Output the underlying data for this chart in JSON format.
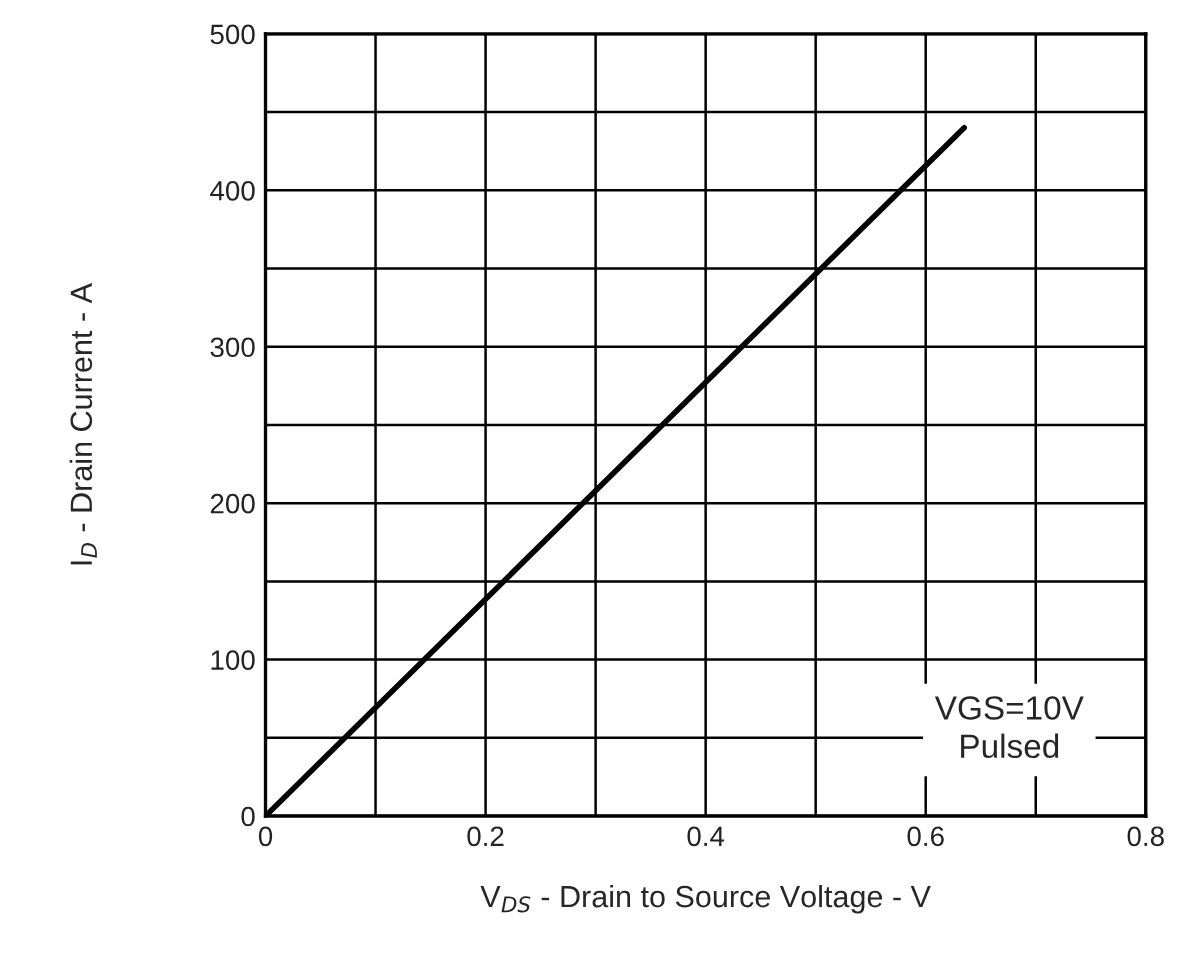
{
  "chart_data": {
    "type": "line",
    "xlabel": "V$_{DS}$ - Drain to Source Voltage - V",
    "ylabel": "I$_{D}$ - Drain Current - A",
    "x": [
      0,
      0.3,
      0.635
    ],
    "series": [
      {
        "color": "#000000",
        "values": [
          0,
          208,
          440
        ]
      }
    ],
    "xlim": [
      0,
      0.8
    ],
    "ylim": [
      0,
      500
    ],
    "xticks": [
      0,
      {
        "value": 0.1,
        "label": null
      },
      0.2,
      {
        "value": 0.3,
        "label": null
      },
      0.4,
      {
        "value": 0.5,
        "label": null
      },
      0.6,
      {
        "value": 0.7,
        "label": null
      },
      0.8
    ],
    "yticks": [
      0,
      {
        "value": 50,
        "label": null
      },
      100,
      {
        "value": 150,
        "label": null
      },
      200,
      {
        "value": 250,
        "label": null
      },
      300,
      {
        "value": 350,
        "label": null
      },
      400,
      {
        "value": 450,
        "label": null
      },
      500
    ],
    "grid": true,
    "marker": "none",
    "line_style": "solid",
    "legend": false,
    "annotations": [
      "VGS=10V\nPulsed"
    ]
  }
}
